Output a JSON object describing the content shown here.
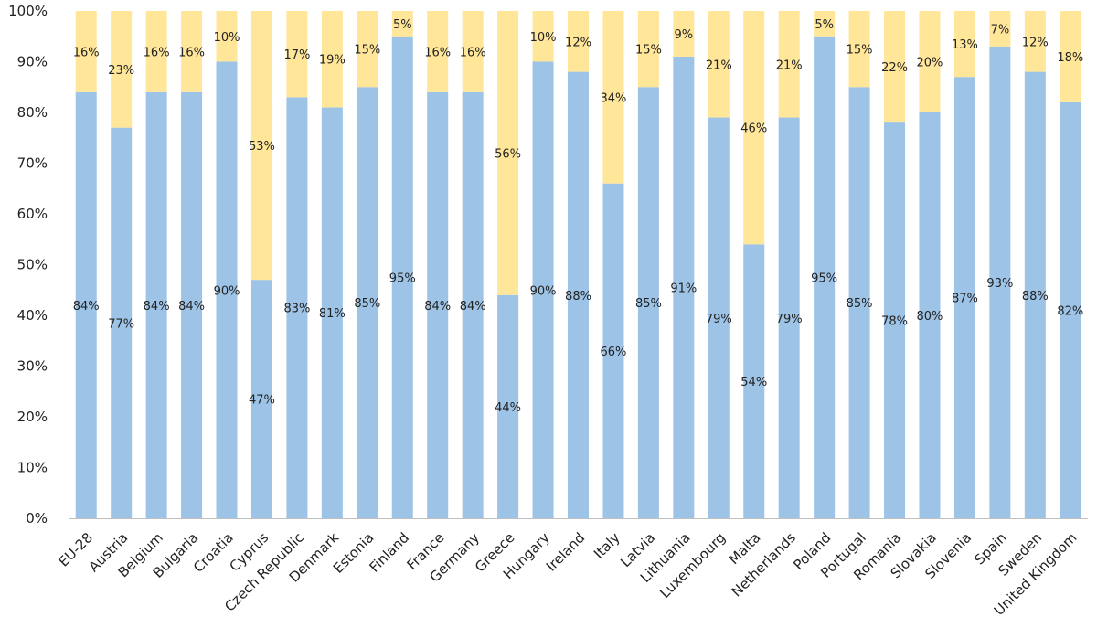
{
  "chart_data": {
    "type": "bar",
    "stacked": true,
    "categories": [
      "EU-28",
      "Austria",
      "Belgium",
      "Bulgaria",
      "Croatia",
      "Cyprus",
      "Czech Republic",
      "Denmark",
      "Estonia",
      "Finland",
      "France",
      "Germany",
      "Greece",
      "Hungary",
      "Ireland",
      "Italy",
      "Latvia",
      "Lithuania",
      "Luxembourg",
      "Malta",
      "Netherlands",
      "Poland",
      "Portugal",
      "Romania",
      "Slovakia",
      "Slovenia",
      "Spain",
      "Sweden",
      "United Kingdom"
    ],
    "series": [
      {
        "color": "#9dc3e6",
        "values": [
          84,
          77,
          84,
          84,
          90,
          47,
          83,
          81,
          85,
          95,
          84,
          84,
          44,
          90,
          88,
          66,
          85,
          91,
          79,
          54,
          79,
          95,
          85,
          78,
          80,
          87,
          93,
          88,
          82
        ]
      },
      {
        "color": "#ffe699",
        "values": [
          16,
          23,
          16,
          16,
          10,
          53,
          17,
          19,
          15,
          5,
          16,
          16,
          56,
          10,
          12,
          34,
          15,
          9,
          21,
          46,
          21,
          5,
          15,
          22,
          20,
          13,
          7,
          12,
          18
        ]
      }
    ],
    "data_labels": [
      [
        "84%",
        "77%",
        "84%",
        "84%",
        "90%",
        "47%",
        "83%",
        "81%",
        "85%",
        "95%",
        "84%",
        "84%",
        "44%",
        "90%",
        "88%",
        "66%",
        "85%",
        "91%",
        "79%",
        "54%",
        "79%",
        "95%",
        "85%",
        "78%",
        "80%",
        "87%",
        "93%",
        "88%",
        "82%"
      ],
      [
        "16%",
        "23%",
        "16%",
        "16%",
        "10%",
        "53%",
        "17%",
        "19%",
        "15%",
        "5%",
        "16%",
        "16%",
        "56%",
        "10%",
        "12%",
        "34%",
        "15%",
        "9%",
        "21%",
        "46%",
        "21%",
        "5%",
        "15%",
        "22%",
        "20%",
        "13%",
        "7%",
        "12%",
        "18%"
      ]
    ],
    "ylim": [
      0,
      100
    ],
    "yticks": [
      "0%",
      "10%",
      "20%",
      "30%",
      "40%",
      "50%",
      "60%",
      "70%",
      "80%",
      "90%",
      "100%"
    ],
    "xlabel": "",
    "ylabel": "",
    "title": "",
    "grid": false,
    "legend": "none"
  }
}
